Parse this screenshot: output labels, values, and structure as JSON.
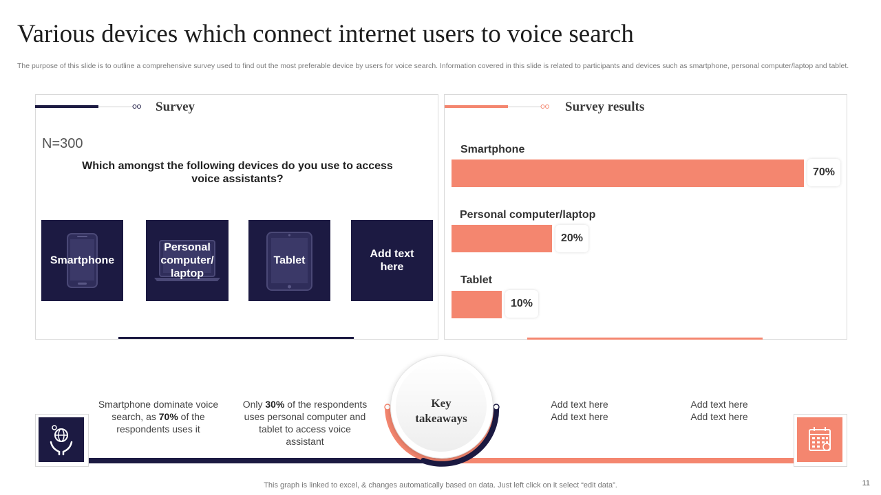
{
  "slide": {
    "title": "Various devices which connect internet users to voice search",
    "description": "The purpose of this slide is to outline a comprehensive survey used to find out the most preferable device by users for voice search. Information covered in this slide is related to participants and devices such as smartphone, personal computer/laptop and tablet.",
    "footer": "This graph is linked to excel, & changes automatically based on data. Just left click on it select “edit data”.",
    "page_number": "11"
  },
  "survey": {
    "heading": "Survey",
    "n_label": "N=300",
    "question": "Which amongst the following devices do you use to access voice assistants?",
    "devices": [
      {
        "label": "Smartphone",
        "icon": "smartphone-icon"
      },
      {
        "label": "Personal computer/ laptop",
        "icon": "laptop-icon"
      },
      {
        "label": "Tablet",
        "icon": "tablet-icon"
      },
      {
        "label": "Add text here",
        "icon": ""
      }
    ]
  },
  "results": {
    "heading": "Survey results"
  },
  "chart_data": {
    "type": "bar",
    "orientation": "horizontal",
    "categories": [
      "Smartphone",
      "Personal computer/laptop",
      "Tablet"
    ],
    "values": [
      70,
      20,
      10
    ],
    "value_labels": [
      "70%",
      "20%",
      "10%"
    ],
    "xlim": [
      0,
      70
    ],
    "color": "#f4866f"
  },
  "takeaways": {
    "center_line1": "Key",
    "center_line2": "takeaways",
    "t1": {
      "pre": "Smartphone dominate voice search, as ",
      "bold": "70%",
      "post": " of the respondents uses it"
    },
    "t2": {
      "pre": "Only ",
      "bold": "30%",
      "post": " of the respondents uses personal computer and tablet to access voice assistant"
    },
    "t3": {
      "line1": "Add text here",
      "line2": "Add text here"
    },
    "t4": {
      "line1": "Add text here",
      "line2": "Add text here"
    }
  },
  "colors": {
    "navy": "#1c1a42",
    "coral": "#f4866f"
  }
}
